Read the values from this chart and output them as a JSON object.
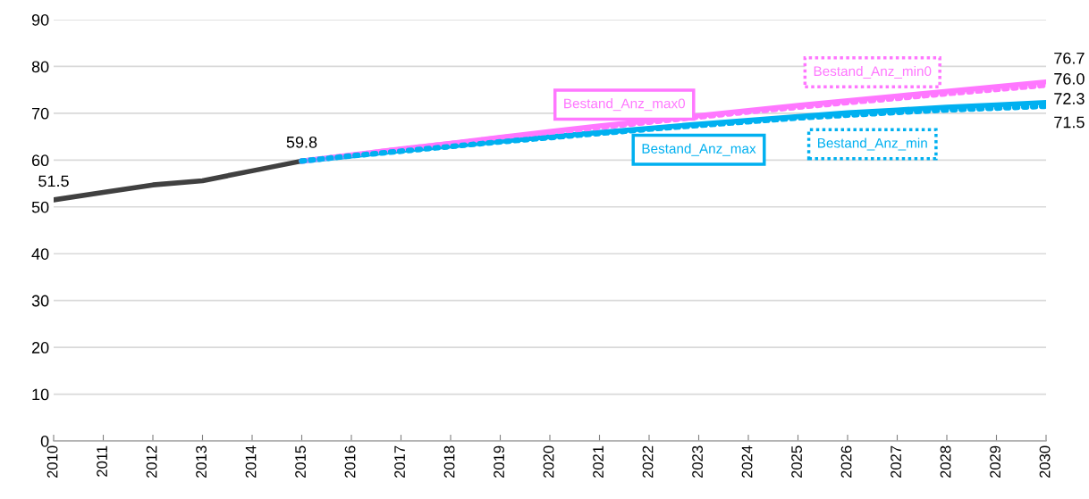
{
  "chart_data": {
    "type": "line",
    "categories": [
      "2010",
      "2011",
      "2012",
      "2013",
      "2014",
      "2015",
      "2016",
      "2017",
      "2018",
      "2019",
      "2020",
      "2021",
      "2022",
      "2023",
      "2024",
      "2025",
      "2026",
      "2027",
      "2028",
      "2029",
      "2030"
    ],
    "ylim": [
      0,
      90
    ],
    "yticks": [
      0,
      10,
      20,
      30,
      40,
      50,
      60,
      70,
      80,
      90
    ],
    "grid": "y",
    "legend": false,
    "marker": "none",
    "series": [
      {
        "color": "#404040",
        "line_style": "solid",
        "values": [
          51.5,
          53.1,
          54.7,
          55.6,
          57.7,
          59.8,
          null,
          null,
          null,
          null,
          null,
          null,
          null,
          null,
          null,
          null,
          null,
          null,
          null,
          null,
          null
        ],
        "value_labels": [
          "51.5",
          null,
          null,
          null,
          null,
          "59.8",
          null,
          null,
          null,
          null,
          null,
          null,
          null,
          null,
          null,
          null,
          null,
          null,
          null,
          null,
          null
        ]
      },
      {
        "name": "Bestand_Anz_min",
        "color": "#00b0f0",
        "line_style": "dotted",
        "values": [
          null,
          null,
          null,
          null,
          null,
          59.8,
          60.9,
          61.9,
          62.9,
          63.9,
          64.8,
          65.7,
          66.6,
          67.4,
          68.2,
          69.0,
          69.6,
          70.2,
          70.7,
          71.1,
          71.5
        ],
        "value_labels": [
          null,
          null,
          null,
          null,
          null,
          null,
          null,
          null,
          null,
          null,
          null,
          null,
          null,
          null,
          null,
          null,
          null,
          null,
          null,
          null,
          "71.5"
        ]
      },
      {
        "name": "Bestand_Anz_max",
        "color": "#00b0f0",
        "line_style": "solid",
        "values": [
          null,
          null,
          null,
          null,
          null,
          59.8,
          60.9,
          62.0,
          63.0,
          64.0,
          65.0,
          65.9,
          66.8,
          67.7,
          68.5,
          69.3,
          70.1,
          70.7,
          71.3,
          71.8,
          72.3
        ],
        "value_labels": [
          null,
          null,
          null,
          null,
          null,
          null,
          null,
          null,
          null,
          null,
          null,
          null,
          null,
          null,
          null,
          null,
          null,
          null,
          null,
          null,
          "72.3"
        ]
      },
      {
        "name": "Bestand_Anz_min0",
        "color": "#ff77ff",
        "line_style": "dotted",
        "values": [
          null,
          null,
          null,
          null,
          null,
          59.8,
          61.0,
          62.3,
          63.5,
          64.7,
          65.9,
          67.0,
          68.1,
          69.2,
          70.3,
          71.3,
          72.3,
          73.2,
          74.2,
          75.1,
          76.0
        ],
        "value_labels": [
          null,
          null,
          null,
          null,
          null,
          null,
          null,
          null,
          null,
          null,
          null,
          null,
          null,
          null,
          null,
          null,
          null,
          null,
          null,
          null,
          "76.0"
        ]
      },
      {
        "name": "Bestand_Anz_max0",
        "color": "#ff77ff",
        "line_style": "solid",
        "values": [
          null,
          null,
          null,
          null,
          null,
          59.8,
          61.1,
          62.4,
          63.6,
          64.9,
          66.1,
          67.3,
          68.4,
          69.5,
          70.6,
          71.7,
          72.7,
          73.7,
          74.7,
          75.7,
          76.7
        ],
        "value_labels": [
          null,
          null,
          null,
          null,
          null,
          null,
          null,
          null,
          null,
          null,
          null,
          null,
          null,
          null,
          null,
          null,
          null,
          null,
          null,
          null,
          "76.7"
        ]
      }
    ]
  }
}
